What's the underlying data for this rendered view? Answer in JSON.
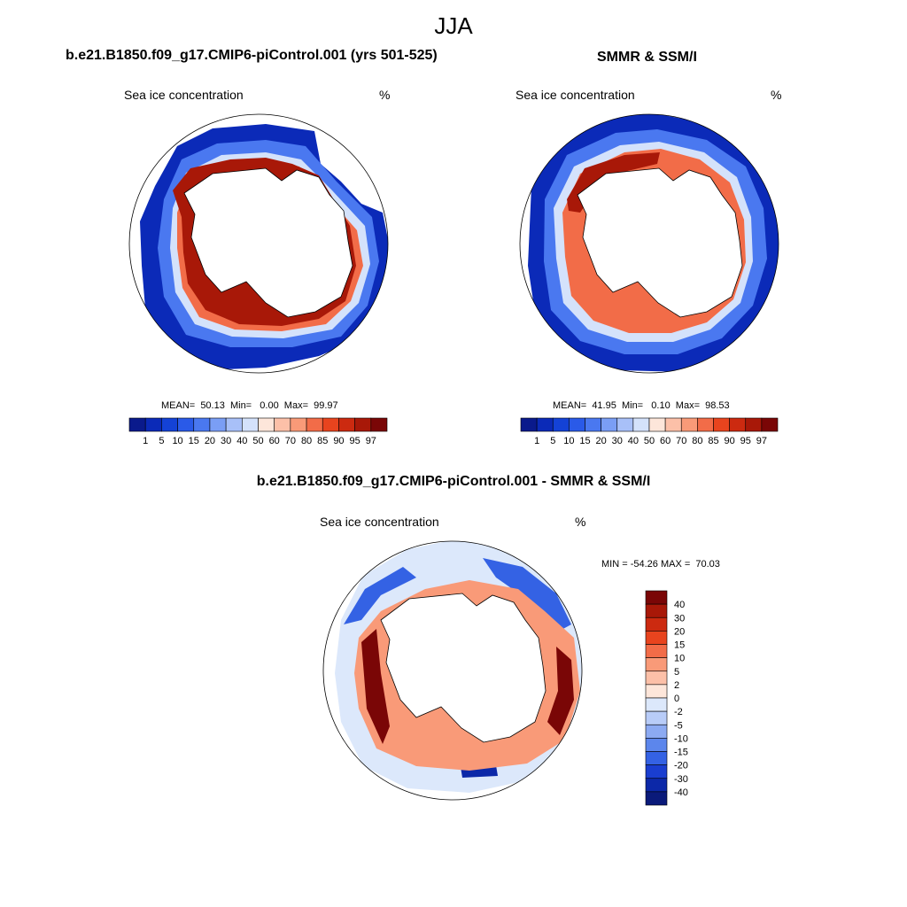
{
  "main_title": "JJA",
  "panels": {
    "model": {
      "title": "b.e21.B1850.f09_g17.CMIP6-piControl.001 (yrs 501-525)",
      "left_label": "Sea ice concentration",
      "units": "%",
      "stats": "MEAN=  50.13  Min=   0.00  Max=  99.97"
    },
    "obs": {
      "title": "SMMR & SSM/I",
      "left_label": "Sea ice concentration",
      "units": "%",
      "stats": "MEAN=  41.95  Min=   0.10  Max=  98.53"
    },
    "diff": {
      "title": "b.e21.B1850.f09_g17.CMIP6-piControl.001 - SMMR & SSM/I",
      "left_label": "Sea ice concentration",
      "units": "%",
      "stats": "MIN = -54.26 MAX =  70.03"
    }
  },
  "chart_data": [
    {
      "type": "heatmap",
      "title": "b.e21.B1850.f09_g17.CMIP6-piControl.001 (yrs 501-525)",
      "variable": "Sea ice concentration",
      "units": "%",
      "projection": "south polar stereographic",
      "mean": 50.13,
      "min": 0.0,
      "max": 99.97,
      "colorbar_levels": [
        "1",
        "5",
        "10",
        "15",
        "20",
        "30",
        "40",
        "50",
        "60",
        "70",
        "80",
        "85",
        "90",
        "95",
        "97"
      ],
      "colorbar_colors": [
        "#0a1a8c",
        "#0b2ab8",
        "#1442d6",
        "#2a5ae8",
        "#4a78f0",
        "#7a9ef5",
        "#a8c0f8",
        "#d4e2fb",
        "#fde6da",
        "#fcc0a8",
        "#f99a78",
        "#f26c48",
        "#e8441e",
        "#cc2a10",
        "#a81808",
        "#7a0606"
      ]
    },
    {
      "type": "heatmap",
      "title": "SMMR & SSM/I",
      "variable": "Sea ice concentration",
      "units": "%",
      "projection": "south polar stereographic",
      "mean": 41.95,
      "min": 0.1,
      "max": 98.53,
      "colorbar_levels": [
        "1",
        "5",
        "10",
        "15",
        "20",
        "30",
        "40",
        "50",
        "60",
        "70",
        "80",
        "85",
        "90",
        "95",
        "97"
      ],
      "colorbar_colors": [
        "#0a1a8c",
        "#0b2ab8",
        "#1442d6",
        "#2a5ae8",
        "#4a78f0",
        "#7a9ef5",
        "#a8c0f8",
        "#d4e2fb",
        "#fde6da",
        "#fcc0a8",
        "#f99a78",
        "#f26c48",
        "#e8441e",
        "#cc2a10",
        "#a81808",
        "#7a0606"
      ]
    },
    {
      "type": "heatmap",
      "title": "b.e21.B1850.f09_g17.CMIP6-piControl.001 - SMMR & SSM/I",
      "variable": "Sea ice concentration",
      "units": "%",
      "projection": "south polar stereographic",
      "min": -54.26,
      "max": 70.03,
      "colorbar_levels": [
        "40",
        "30",
        "20",
        "15",
        "10",
        "5",
        "2",
        "0",
        "-2",
        "-5",
        "-10",
        "-15",
        "-20",
        "-30",
        "-40"
      ],
      "colorbar_colors": [
        "#7a0606",
        "#a81808",
        "#cc2a10",
        "#e8441e",
        "#f26c48",
        "#f99a78",
        "#fcc0a8",
        "#fde6da",
        "#dce8fb",
        "#b8ccf8",
        "#8caaf2",
        "#5c86ec",
        "#3462e4",
        "#1a3ed0",
        "#0c28a8",
        "#0a1a7a"
      ]
    }
  ]
}
